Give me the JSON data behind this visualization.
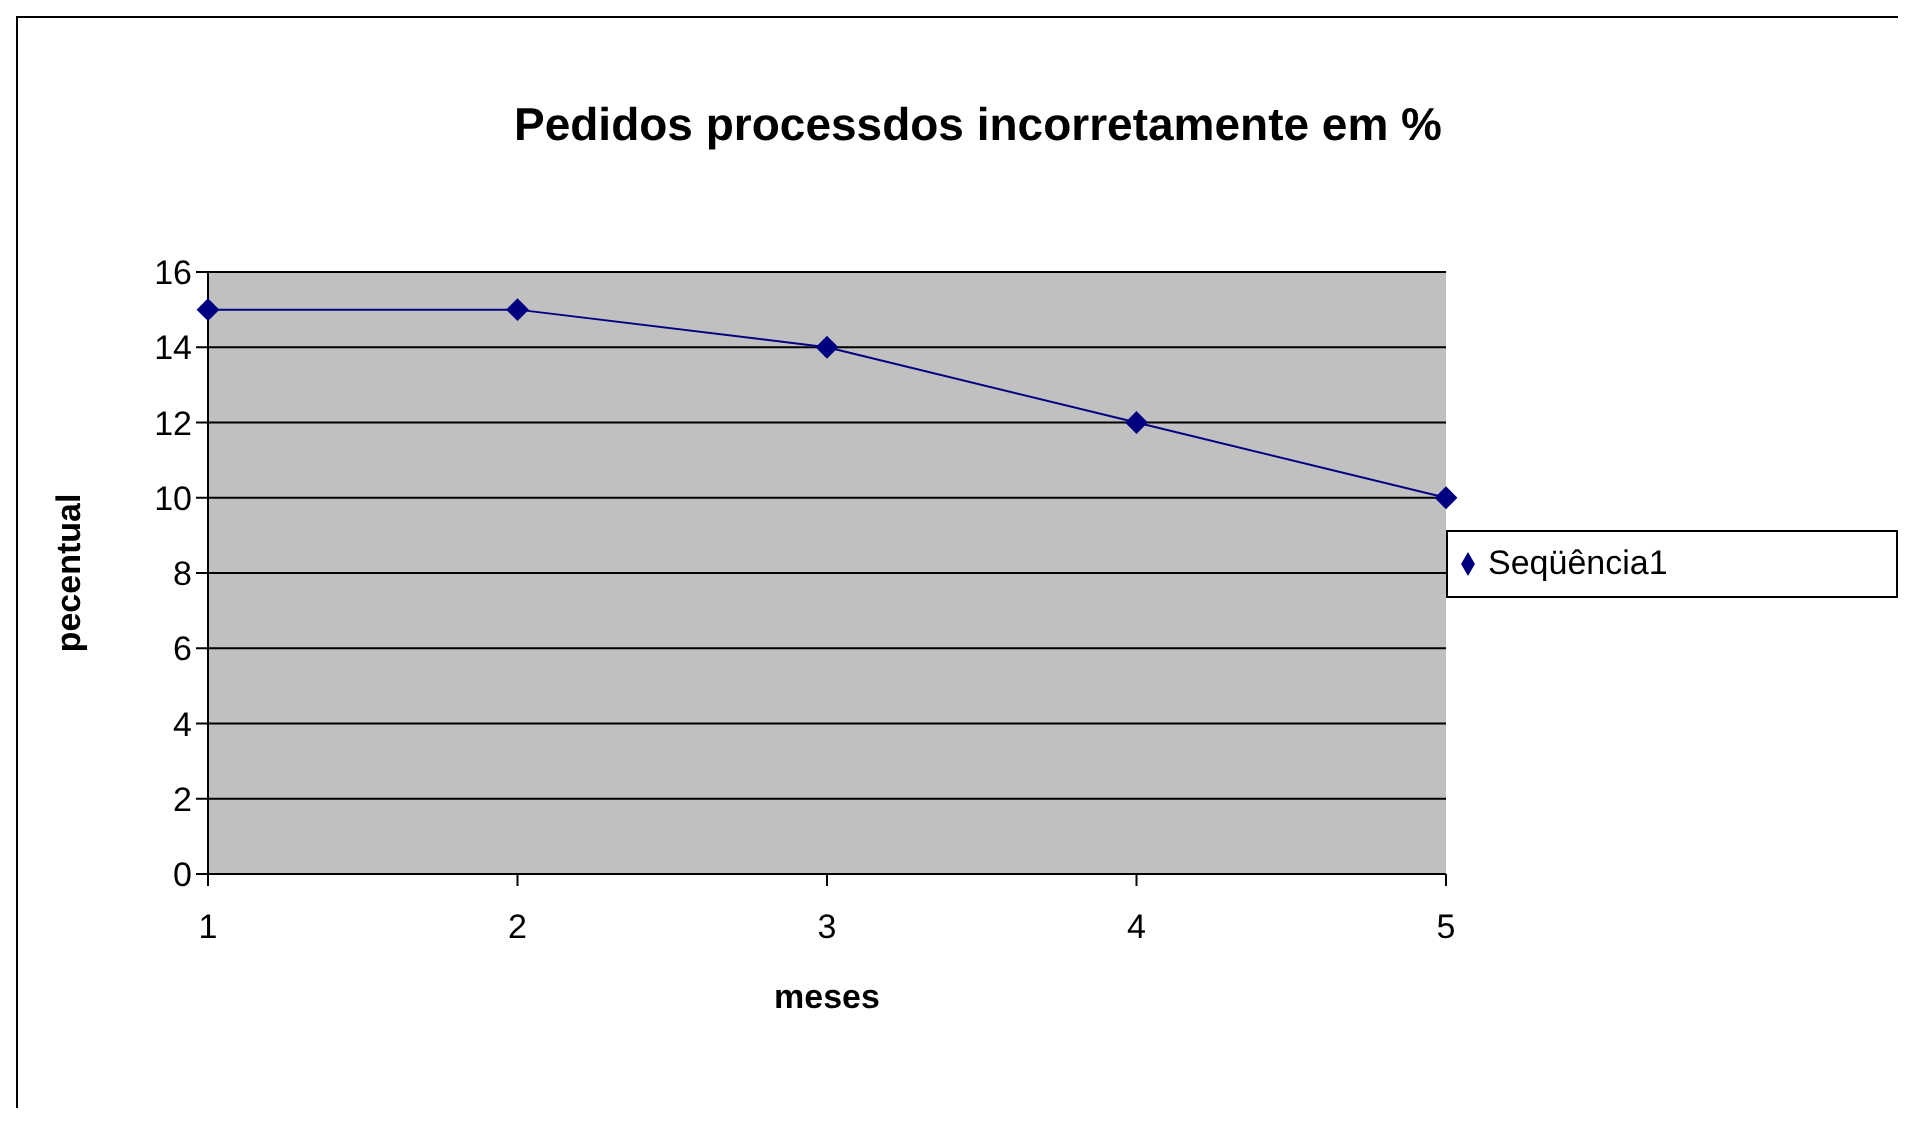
{
  "chart_data": {
    "type": "line",
    "title": "Pedidos processdos incorretamente em %",
    "xlabel": "meses",
    "ylabel": "pecentual",
    "categories": [
      "1",
      "2",
      "3",
      "4",
      "5"
    ],
    "series": [
      {
        "name": "Seqüência1",
        "color": "#000080",
        "values": [
          15,
          15,
          14,
          12,
          10
        ]
      }
    ],
    "ylim": [
      0,
      16
    ],
    "yticks": [
      0,
      2,
      4,
      6,
      8,
      10,
      12,
      14,
      16
    ],
    "grid": "y",
    "legend": "right",
    "marker": "diamond",
    "line_style": "solid"
  }
}
